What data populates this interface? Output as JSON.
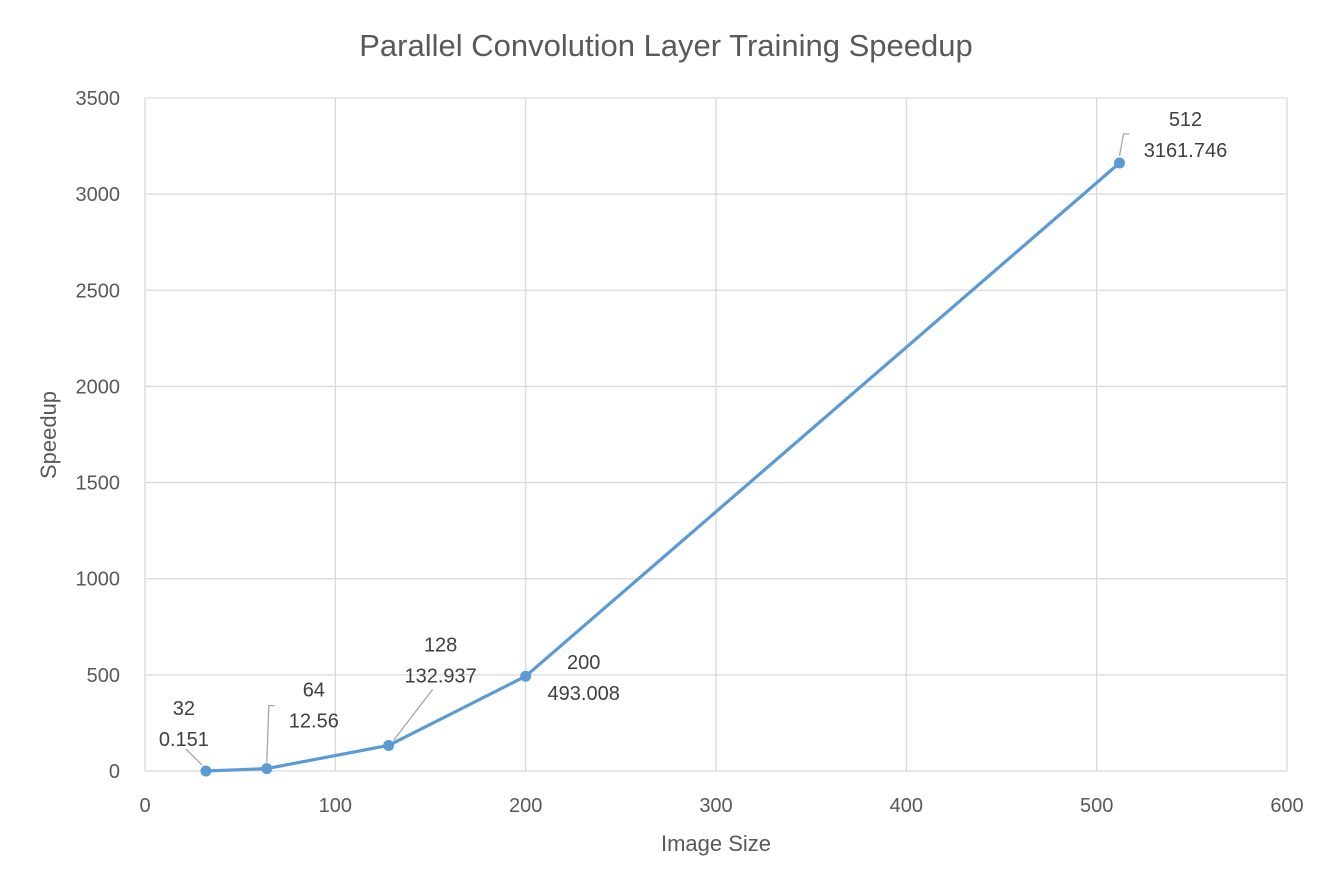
{
  "chart_data": {
    "type": "scatter",
    "title": "Parallel Convolution Layer Training Speedup",
    "xlabel": "Image Size",
    "ylabel": "Speedup",
    "xlim": [
      0,
      600
    ],
    "ylim": [
      0,
      3500
    ],
    "x_ticks": [
      0,
      100,
      200,
      300,
      400,
      500,
      600
    ],
    "y_ticks": [
      0,
      500,
      1000,
      1500,
      2000,
      2500,
      3000,
      3500
    ],
    "grid": true,
    "legend": "none",
    "line_color": "#5B9BD5",
    "series": [
      {
        "points": [
          {
            "x": 32,
            "y": 0.151,
            "label_x": "32",
            "label_y": "0.151"
          },
          {
            "x": 64,
            "y": 12.56,
            "label_x": "64",
            "label_y": "12.56"
          },
          {
            "x": 128,
            "y": 132.937,
            "label_x": "128",
            "label_y": "132.937"
          },
          {
            "x": 200,
            "y": 493.008,
            "label_x": "200",
            "label_y": "493.008"
          },
          {
            "x": 512,
            "y": 3161.746,
            "label_x": "512",
            "label_y": "3161.746"
          }
        ]
      }
    ]
  }
}
